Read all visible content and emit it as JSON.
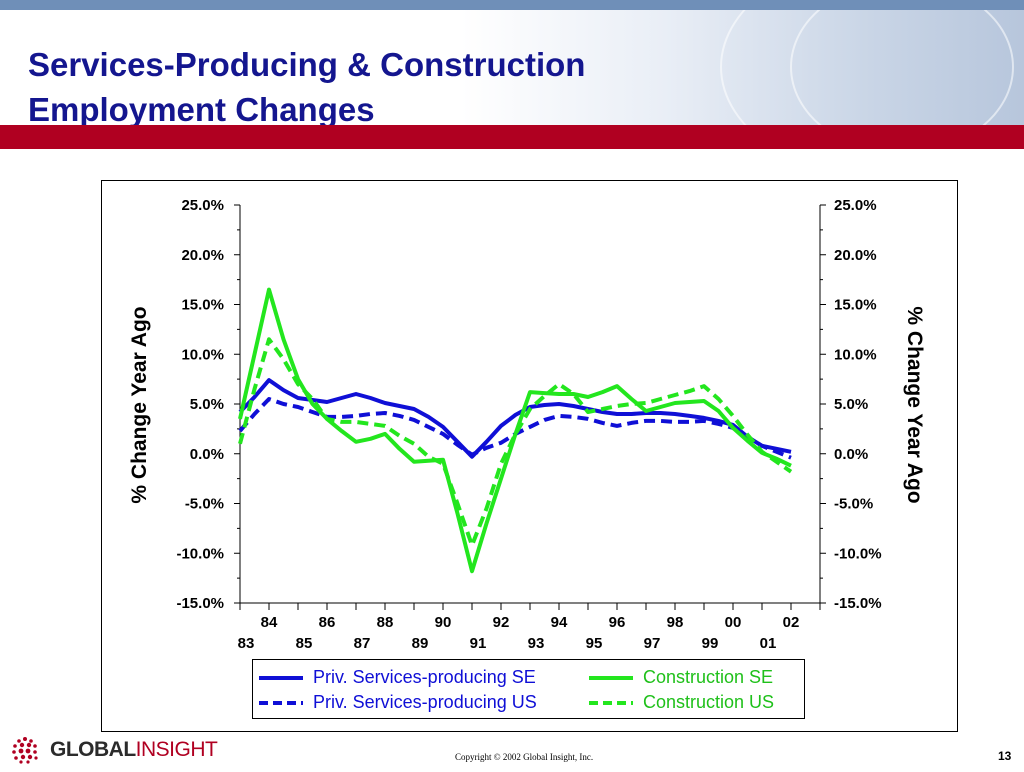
{
  "slide": {
    "title_line1": "Services-Producing & Construction",
    "title_line2": "Employment Changes",
    "copyright": "Copyright © 2002 Global Insight, Inc.",
    "page_number": "13",
    "logo": {
      "word1": "GLOBAL",
      "word2": "INSIGHT",
      "icon": "dotted-sphere-logo-icon"
    },
    "colors": {
      "title": "#14168f",
      "red_bar": "#b00021",
      "blue_series": "#0f0fd6",
      "green_series": "#23e61e"
    }
  },
  "chart_data": {
    "type": "line",
    "title": "",
    "ylabel": "% Change Year Ago",
    "ylabel_right": "% Change Year Ago",
    "xlabel": "",
    "ylim": [
      -15,
      25
    ],
    "yticks": [
      "25.0%",
      "20.0%",
      "15.0%",
      "10.0%",
      "5.0%",
      "0.0%",
      "-5.0%",
      "-10.0%",
      "-15.0%"
    ],
    "ytick_values": [
      25,
      20,
      15,
      10,
      5,
      0,
      -5,
      -10,
      -15
    ],
    "x_tick_labels_upper": [
      "84",
      "86",
      "88",
      "90",
      "92",
      "94",
      "96",
      "98",
      "00",
      "02"
    ],
    "x_tick_labels_lower": [
      "83",
      "85",
      "87",
      "89",
      "91",
      "93",
      "95",
      "97",
      "99",
      "01"
    ],
    "xlim": [
      1983,
      2003
    ],
    "legend_position": "bottom",
    "series": [
      {
        "name": "Priv. Services-producing SE",
        "style": "solid",
        "color": "#0f0fd6",
        "x": [
          1983.0,
          1983.5,
          1984.0,
          1984.5,
          1985.0,
          1985.5,
          1986.0,
          1986.5,
          1987.0,
          1987.5,
          1988.0,
          1988.5,
          1989.0,
          1989.5,
          1990.0,
          1990.5,
          1991.0,
          1991.5,
          1992.0,
          1992.5,
          1993.0,
          1993.5,
          1994.0,
          1994.5,
          1995.0,
          1995.5,
          1996.0,
          1996.5,
          1997.0,
          1997.5,
          1998.0,
          1998.5,
          1999.0,
          1999.5,
          2000.0,
          2000.5,
          2001.0,
          2001.5,
          2002.0
        ],
        "values": [
          4.2,
          5.7,
          7.4,
          6.4,
          5.6,
          5.4,
          5.2,
          5.6,
          6.0,
          5.6,
          5.1,
          4.8,
          4.5,
          3.7,
          2.7,
          1.2,
          -0.3,
          1.2,
          2.8,
          3.9,
          4.7,
          4.9,
          5.0,
          4.8,
          4.5,
          4.2,
          4.0,
          4.0,
          4.1,
          4.1,
          4.0,
          3.8,
          3.6,
          3.3,
          2.9,
          1.7,
          0.8,
          0.5,
          0.2
        ]
      },
      {
        "name": "Priv. Services-producing US",
        "style": "dashed",
        "color": "#0f0fd6",
        "x": [
          1983.0,
          1983.5,
          1984.0,
          1984.5,
          1985.0,
          1985.5,
          1986.0,
          1986.5,
          1987.0,
          1987.5,
          1988.0,
          1988.5,
          1989.0,
          1989.5,
          1990.0,
          1990.5,
          1991.0,
          1991.5,
          1992.0,
          1992.5,
          1993.0,
          1993.5,
          1994.0,
          1994.5,
          1995.0,
          1995.5,
          1996.0,
          1996.5,
          1997.0,
          1997.5,
          1998.0,
          1998.5,
          1999.0,
          1999.5,
          2000.0,
          2000.5,
          2001.0,
          2001.5,
          2002.0
        ],
        "values": [
          2.3,
          4.0,
          5.5,
          5.0,
          4.7,
          4.2,
          3.7,
          3.7,
          3.8,
          4.0,
          4.1,
          3.8,
          3.4,
          2.7,
          2.0,
          0.9,
          -0.1,
          0.6,
          1.1,
          2.0,
          2.7,
          3.4,
          3.8,
          3.7,
          3.5,
          3.1,
          2.8,
          3.1,
          3.3,
          3.3,
          3.2,
          3.2,
          3.3,
          3.0,
          2.6,
          1.7,
          0.8,
          0.2,
          -0.4
        ]
      },
      {
        "name": "Construction SE",
        "style": "solid",
        "color": "#23e61e",
        "x": [
          1983.0,
          1983.5,
          1984.0,
          1984.5,
          1985.0,
          1985.5,
          1986.0,
          1986.5,
          1987.0,
          1987.5,
          1988.0,
          1988.5,
          1989.0,
          1989.5,
          1990.0,
          1990.5,
          1991.0,
          1991.5,
          1992.0,
          1992.5,
          1993.0,
          1993.5,
          1994.0,
          1994.5,
          1995.0,
          1995.5,
          1996.0,
          1996.5,
          1997.0,
          1997.5,
          1998.0,
          1998.5,
          1999.0,
          1999.5,
          2000.0,
          2000.5,
          2001.0,
          2001.5,
          2002.0
        ],
        "values": [
          3.5,
          10.0,
          16.5,
          11.5,
          7.5,
          5.0,
          3.5,
          2.3,
          1.2,
          1.5,
          2.0,
          0.5,
          -0.8,
          -0.7,
          -0.6,
          -6.0,
          -11.8,
          -7.0,
          -2.5,
          2.0,
          6.2,
          6.1,
          6.0,
          6.0,
          5.7,
          6.2,
          6.8,
          5.5,
          4.3,
          4.7,
          5.1,
          5.2,
          5.3,
          4.3,
          2.6,
          1.3,
          0.1,
          -0.5,
          -1.2
        ]
      },
      {
        "name": "Construction US",
        "style": "dashed",
        "color": "#23e61e",
        "x": [
          1983.0,
          1983.5,
          1984.0,
          1984.5,
          1985.0,
          1985.5,
          1986.0,
          1986.5,
          1987.0,
          1987.5,
          1988.0,
          1988.5,
          1989.0,
          1989.5,
          1990.0,
          1990.5,
          1991.0,
          1991.5,
          1992.0,
          1992.5,
          1993.0,
          1993.5,
          1994.0,
          1994.5,
          1995.0,
          1995.5,
          1996.0,
          1996.5,
          1997.0,
          1997.5,
          1998.0,
          1998.5,
          1999.0,
          1999.5,
          2000.0,
          2000.5,
          2001.0,
          2001.5,
          2002.0
        ],
        "values": [
          1.0,
          6.5,
          11.5,
          9.5,
          7.0,
          5.5,
          3.5,
          3.2,
          3.2,
          3.0,
          2.8,
          1.8,
          1.0,
          -0.3,
          -1.0,
          -5.0,
          -9.2,
          -5.5,
          -1.0,
          2.0,
          4.5,
          5.8,
          7.0,
          6.0,
          4.2,
          4.5,
          4.8,
          5.0,
          5.1,
          5.5,
          5.9,
          6.3,
          6.8,
          5.5,
          3.8,
          1.9,
          0.2,
          -0.8,
          -1.8
        ]
      }
    ]
  }
}
